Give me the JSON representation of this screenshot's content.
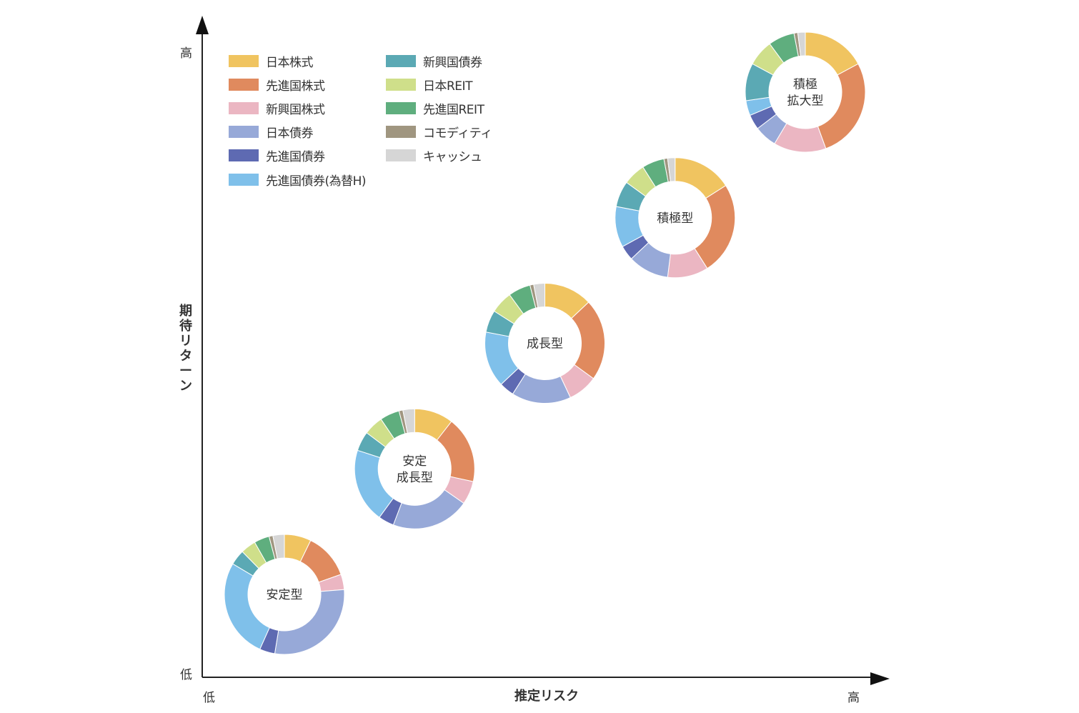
{
  "chart_data": {
    "type": "donut-scatter",
    "title": "",
    "xlabel": "推定リスク",
    "ylabel": "期待リターン",
    "x_ticks": {
      "low": "低",
      "high": "高"
    },
    "y_ticks": {
      "low": "低",
      "high": "高"
    },
    "categories": [
      "日本株式",
      "先進国株式",
      "新興国株式",
      "日本債券",
      "先進国債券",
      "先進国債券(為替H)",
      "新興国債券",
      "日本REIT",
      "先進国REIT",
      "コモディティ",
      "キャッシュ"
    ],
    "colors": {
      "日本株式": "#f0c460",
      "先進国株式": "#e08a5e",
      "新興国株式": "#ebb6c2",
      "日本債券": "#97a9d8",
      "先進国債券": "#5e6ab2",
      "先進国債券(為替H)": "#7fc0ea",
      "新興国債券": "#5ba9b4",
      "日本REIT": "#cfdf8a",
      "先進国REIT": "#5fae7e",
      "コモディティ": "#a09680",
      "キャッシュ": "#d6d6d6"
    },
    "series": [
      {
        "name": "安定型",
        "risk": 1,
        "return": 1,
        "values": [
          7,
          12,
          4,
          28,
          4,
          26,
          4,
          4,
          4,
          1,
          3
        ]
      },
      {
        "name": "安定成長型",
        "risk": 2,
        "return": 2,
        "values": [
          10,
          17,
          6,
          20,
          4,
          19,
          5,
          5,
          5,
          1,
          3
        ]
      },
      {
        "name": "成長型",
        "risk": 3,
        "return": 3,
        "values": [
          13,
          22,
          8,
          16,
          4,
          15,
          6,
          6,
          6,
          1,
          3
        ]
      },
      {
        "name": "積極型",
        "risk": 4,
        "return": 4,
        "values": [
          16,
          25,
          11,
          11,
          4,
          11,
          7,
          6,
          6,
          1,
          2
        ]
      },
      {
        "name": "積極拡大型",
        "risk": 5,
        "return": 5,
        "values": [
          17,
          27,
          14,
          6,
          4,
          4,
          10,
          7,
          7,
          1,
          2
        ]
      }
    ]
  },
  "legend": {
    "items": [
      {
        "label": "日本株式",
        "color": "#f0c460"
      },
      {
        "label": "先進国株式",
        "color": "#e08a5e"
      },
      {
        "label": "新興国株式",
        "color": "#ebb6c2"
      },
      {
        "label": "日本債券",
        "color": "#97a9d8"
      },
      {
        "label": "先進国債券",
        "color": "#5e6ab2"
      },
      {
        "label": "先進国債券(為替H)",
        "color": "#7fc0ea"
      },
      {
        "label": "新興国債券",
        "color": "#5ba9b4"
      },
      {
        "label": "日本REIT",
        "color": "#cfdf8a"
      },
      {
        "label": "先進国REIT",
        "color": "#5fae7e"
      },
      {
        "label": "コモディティ",
        "color": "#a09680"
      },
      {
        "label": "キャッシュ",
        "color": "#d6d6d6"
      }
    ]
  },
  "donut_labels": [
    [
      "安定型"
    ],
    [
      "安定",
      "成長型"
    ],
    [
      "成長型"
    ],
    [
      "積極型"
    ],
    [
      "積極",
      "拡大型"
    ]
  ]
}
